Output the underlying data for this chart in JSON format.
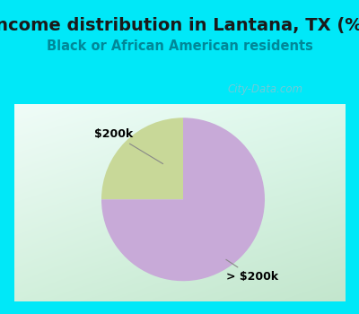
{
  "title": "Income distribution in Lantana, TX (%)",
  "subtitle": "Black or African American residents",
  "slices": [
    25.0,
    75.0
  ],
  "labels": [
    "$200k",
    "> $200k"
  ],
  "slice_colors": [
    "#c8d898",
    "#c8aad8"
  ],
  "startangle": 90,
  "bg_color": "#00e8f8",
  "chart_bg_tl": "#f0faf8",
  "chart_bg_br": "#c8e8c0",
  "title_color": "#1a1a1a",
  "subtitle_color": "#008898",
  "watermark": "City-Data.com",
  "title_fontsize": 14,
  "subtitle_fontsize": 10.5,
  "label_fontsize": 9
}
